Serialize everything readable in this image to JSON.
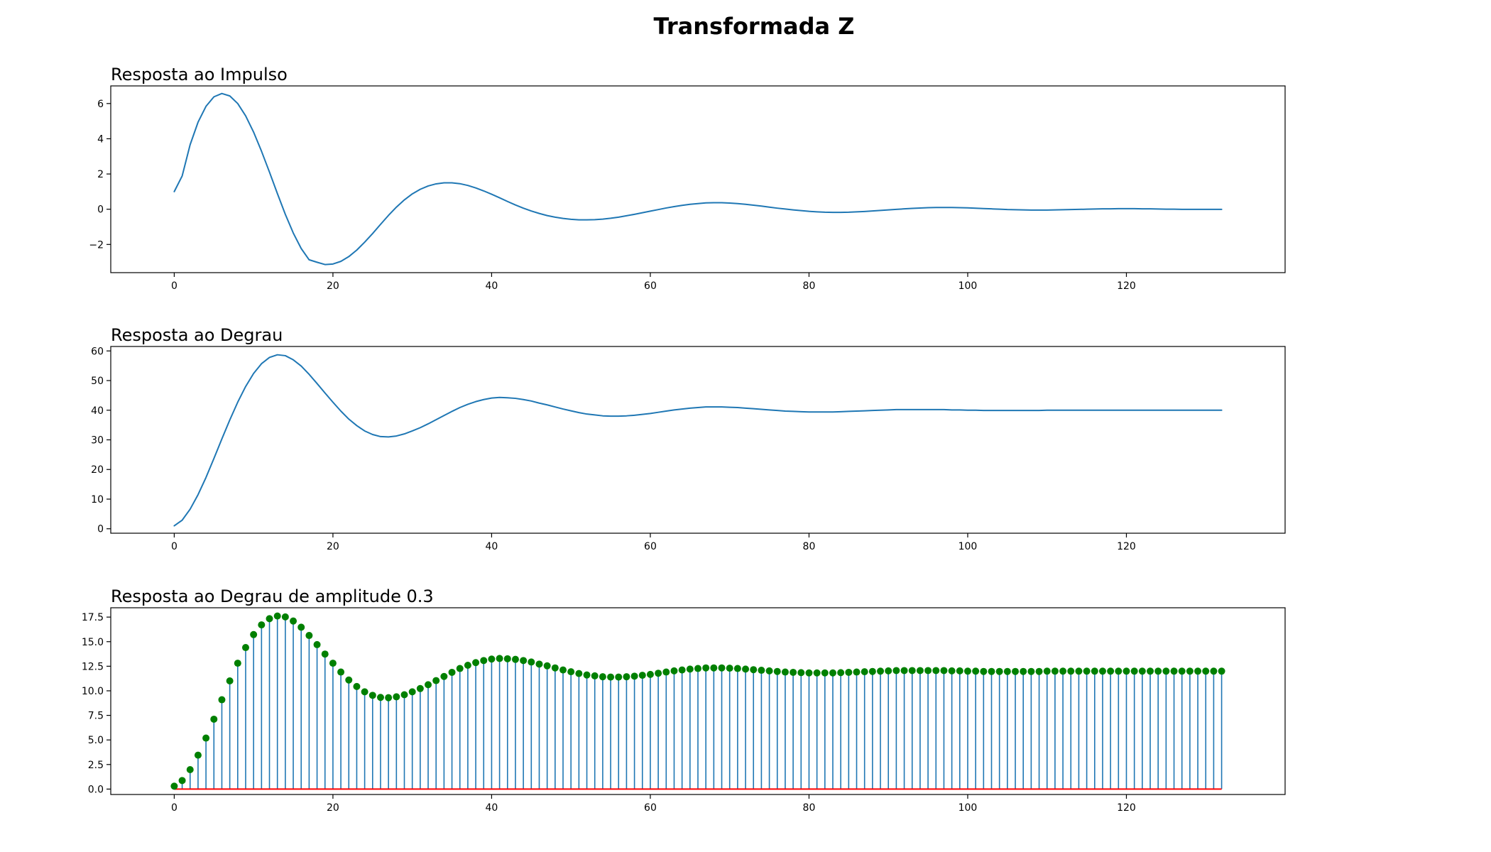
{
  "figure": {
    "title": "Transformada Z"
  },
  "chart_data": [
    {
      "type": "line",
      "title": "Resposta ao Impulso",
      "xlabel": "",
      "ylabel": "",
      "xlim": [
        -8,
        140
      ],
      "ylim": [
        -3.6,
        7.0
      ],
      "xticks": [
        0,
        20,
        40,
        60,
        80,
        100,
        120
      ],
      "yticks": [
        -2,
        0,
        2,
        4,
        6
      ],
      "grid": false,
      "color": "#1f77b4",
      "x_start": 0,
      "x_step": 1,
      "values": [
        1.0,
        1.89,
        3.66,
        4.94,
        5.84,
        6.38,
        6.57,
        6.43,
        6.0,
        5.3,
        4.38,
        3.29,
        2.11,
        0.89,
        -0.29,
        -1.35,
        -2.23,
        -2.87,
        -3.01,
        -3.14,
        -3.11,
        -2.96,
        -2.69,
        -2.32,
        -1.87,
        -1.38,
        -0.86,
        -0.35,
        0.12,
        0.53,
        0.87,
        1.13,
        1.32,
        1.44,
        1.5,
        1.5,
        1.45,
        1.35,
        1.21,
        1.04,
        0.85,
        0.65,
        0.44,
        0.24,
        0.06,
        -0.1,
        -0.24,
        -0.36,
        -0.45,
        -0.52,
        -0.57,
        -0.6,
        -0.6,
        -0.59,
        -0.56,
        -0.51,
        -0.45,
        -0.37,
        -0.29,
        -0.2,
        -0.11,
        -0.02,
        0.07,
        0.15,
        0.22,
        0.28,
        0.32,
        0.36,
        0.37,
        0.37,
        0.35,
        0.32,
        0.28,
        0.23,
        0.18,
        0.12,
        0.06,
        0.01,
        -0.04,
        -0.08,
        -0.12,
        -0.15,
        -0.17,
        -0.18,
        -0.18,
        -0.17,
        -0.15,
        -0.13,
        -0.1,
        -0.07,
        -0.04,
        -0.01,
        0.02,
        0.05,
        0.07,
        0.09,
        0.1,
        0.1,
        0.1,
        0.09,
        0.08,
        0.06,
        0.04,
        0.02,
        0.0,
        -0.02,
        -0.03,
        -0.04,
        -0.05,
        -0.05,
        -0.05,
        -0.04,
        -0.03,
        -0.02,
        -0.01,
        0.0,
        0.01,
        0.02,
        0.02,
        0.03,
        0.03,
        0.03,
        0.02,
        0.02,
        0.01,
        0.0,
        0.0,
        -0.01,
        -0.01,
        -0.01,
        -0.01,
        -0.01,
        -0.01
      ]
    },
    {
      "type": "line",
      "title": "Resposta ao Degrau",
      "xlabel": "",
      "ylabel": "",
      "xlim": [
        -8,
        140
      ],
      "ylim": [
        -1.5,
        61.5
      ],
      "xticks": [
        0,
        20,
        40,
        60,
        80,
        100,
        120
      ],
      "yticks": [
        0,
        10,
        20,
        30,
        40,
        50,
        60
      ],
      "grid": false,
      "color": "#1f77b4",
      "x_start": 0,
      "x_step": 1,
      "values": [
        1.0,
        2.9,
        6.6,
        11.5,
        17.3,
        23.7,
        30.3,
        36.7,
        42.7,
        48.0,
        52.4,
        55.7,
        57.8,
        58.7,
        58.4,
        57.0,
        54.9,
        52.1,
        49.0,
        45.8,
        42.7,
        39.7,
        37.0,
        34.8,
        33.0,
        31.8,
        31.1,
        31.0,
        31.3,
        32.0,
        33.0,
        34.1,
        35.4,
        36.8,
        38.2,
        39.6,
        40.9,
        42.0,
        42.9,
        43.6,
        44.1,
        44.3,
        44.2,
        44.0,
        43.6,
        43.1,
        42.4,
        41.8,
        41.1,
        40.4,
        39.8,
        39.2,
        38.7,
        38.4,
        38.1,
        38.0,
        38.0,
        38.1,
        38.3,
        38.6,
        38.9,
        39.3,
        39.7,
        40.1,
        40.4,
        40.7,
        40.9,
        41.1,
        41.1,
        41.1,
        41.0,
        40.9,
        40.7,
        40.5,
        40.3,
        40.1,
        39.9,
        39.7,
        39.6,
        39.5,
        39.4,
        39.4,
        39.4,
        39.4,
        39.5,
        39.6,
        39.7,
        39.8,
        39.9,
        40.0,
        40.1,
        40.2,
        40.2,
        40.2,
        40.2,
        40.2,
        40.2,
        40.2,
        40.1,
        40.1,
        40.0,
        40.0,
        39.9,
        39.9,
        39.9,
        39.9,
        39.9,
        39.9,
        39.9,
        39.9,
        40.0,
        40.0,
        40.0,
        40.0,
        40.0,
        40.0,
        40.0,
        40.0,
        40.0,
        40.0,
        40.0,
        40.0,
        40.0,
        40.0,
        40.0,
        40.0,
        40.0,
        40.0,
        40.0,
        40.0,
        40.0,
        40.0,
        40.0
      ]
    },
    {
      "type": "stem",
      "title": "Resposta ao Degrau de amplitude 0.3",
      "xlabel": "",
      "ylabel": "",
      "xlim": [
        -8,
        140
      ],
      "ylim": [
        -0.55,
        18.45
      ],
      "xticks": [
        0,
        20,
        40,
        60,
        80,
        100,
        120
      ],
      "yticks": [
        0.0,
        2.5,
        5.0,
        7.5,
        10.0,
        12.5,
        15.0,
        17.5
      ],
      "ytick_format": "0.0",
      "grid": false,
      "stem_color": "#1f77b4",
      "marker_color": "#008000",
      "baseline_color": "#ff0000",
      "x_start": 0,
      "x_step": 1,
      "values": [
        0.3,
        0.87,
        1.98,
        3.45,
        5.19,
        7.11,
        9.09,
        11.01,
        12.81,
        14.4,
        15.72,
        16.71,
        17.34,
        17.61,
        17.52,
        17.1,
        16.47,
        15.63,
        14.7,
        13.74,
        12.81,
        11.91,
        11.1,
        10.44,
        9.9,
        9.54,
        9.33,
        9.3,
        9.39,
        9.6,
        9.9,
        10.23,
        10.62,
        11.04,
        11.46,
        11.88,
        12.27,
        12.6,
        12.87,
        13.08,
        13.23,
        13.29,
        13.26,
        13.2,
        13.08,
        12.93,
        12.72,
        12.54,
        12.33,
        12.12,
        11.94,
        11.76,
        11.61,
        11.52,
        11.43,
        11.4,
        11.4,
        11.43,
        11.49,
        11.58,
        11.67,
        11.79,
        11.91,
        12.03,
        12.12,
        12.21,
        12.27,
        12.33,
        12.33,
        12.33,
        12.3,
        12.27,
        12.21,
        12.15,
        12.09,
        12.03,
        11.97,
        11.91,
        11.88,
        11.85,
        11.82,
        11.82,
        11.82,
        11.82,
        11.85,
        11.88,
        11.91,
        11.94,
        11.97,
        12.0,
        12.03,
        12.06,
        12.06,
        12.06,
        12.06,
        12.06,
        12.06,
        12.06,
        12.03,
        12.03,
        12.0,
        12.0,
        11.97,
        11.97,
        11.97,
        11.97,
        11.97,
        11.97,
        11.97,
        11.97,
        12.0,
        12.0,
        12.0,
        12.0,
        12.0,
        12.0,
        12.0,
        12.0,
        12.0,
        12.0,
        12.0,
        12.0,
        12.0,
        12.0,
        12.0,
        12.0,
        12.0,
        12.0,
        12.0,
        12.0,
        12.0,
        12.0,
        12.0
      ]
    }
  ]
}
